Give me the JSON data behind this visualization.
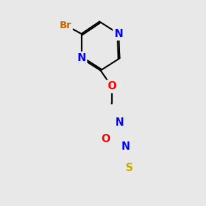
{
  "background_color": "#e8e8e8",
  "atom_colors": {
    "C": "#000000",
    "N": "#0000ff",
    "O": "#ff0000",
    "S": "#ccaa00",
    "Br": "#cc6600"
  },
  "bond_color": "#000000",
  "bond_width": 1.6,
  "figsize": [
    3.0,
    3.0
  ],
  "dpi": 100
}
